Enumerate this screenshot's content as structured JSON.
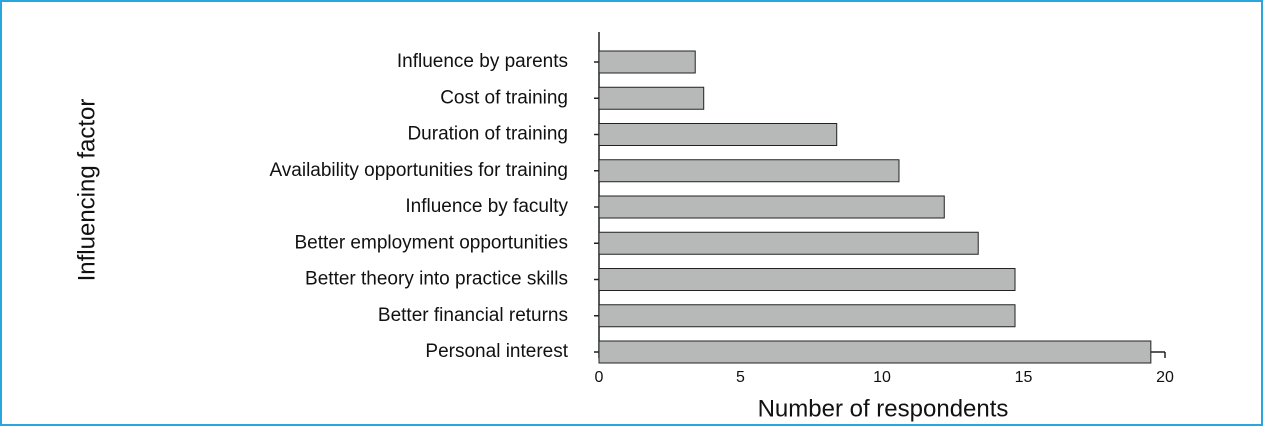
{
  "chart_data": {
    "type": "bar",
    "orientation": "horizontal",
    "x_label": "Number of respondents",
    "y_label": "Influencing  factor",
    "categories": [
      "Influence by parents",
      "Cost of training",
      "Duration of training",
      "Availability opportunities for training",
      "Influence by faculty",
      "Better employment opportunities",
      "Better theory into practice skills",
      "Better financial returns",
      "Personal interest"
    ],
    "values": [
      3.4,
      3.7,
      8.4,
      10.6,
      12.2,
      13.4,
      14.7,
      14.7,
      19.5
    ],
    "color": "#b7b9b9",
    "xlim": [
      0,
      20
    ],
    "xticks": [
      0,
      5,
      10,
      15,
      20
    ],
    "grid": false
  }
}
